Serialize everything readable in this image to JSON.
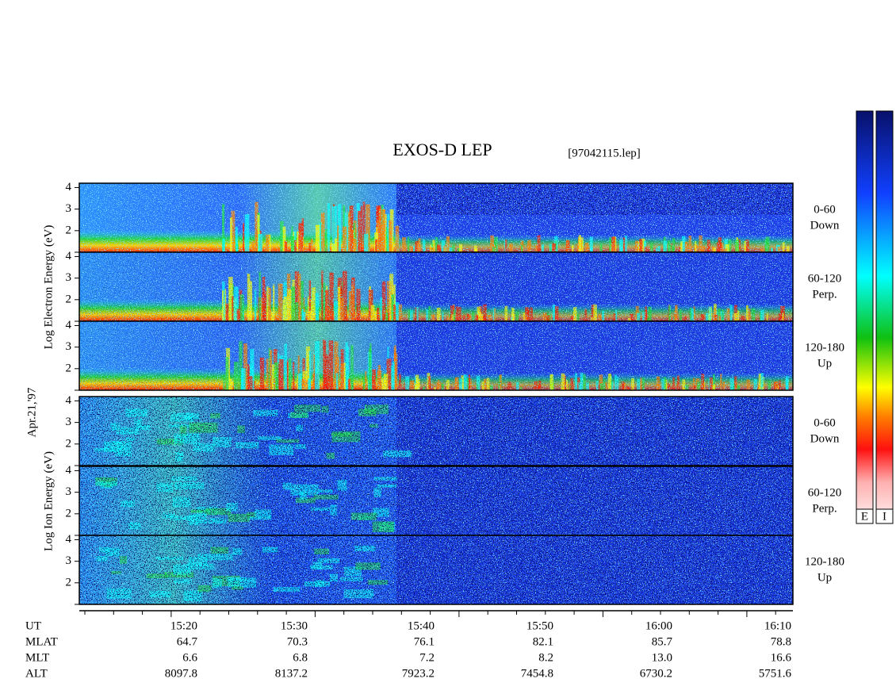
{
  "title": "EXOS-D LEP",
  "file": "[97042115.lep]",
  "date": "Apr.21,'97",
  "electron_axis_label": "Log  Electron  Energy (eV)",
  "ion_axis_label": "Log  Ion  Energy (eV)",
  "ylim": [
    1,
    4.2
  ],
  "yticks": [
    2,
    3,
    4
  ],
  "panels": [
    {
      "species": "electron",
      "label": [
        "0-60",
        "Down"
      ]
    },
    {
      "species": "electron",
      "label": [
        "60-120",
        "Perp."
      ]
    },
    {
      "species": "electron",
      "label": [
        "120-180",
        "Up"
      ]
    },
    {
      "species": "ion",
      "label": [
        "0-60",
        "Down"
      ]
    },
    {
      "species": "ion",
      "label": [
        "60-120",
        "Perp."
      ]
    },
    {
      "species": "ion",
      "label": [
        "120-180",
        "Up"
      ]
    }
  ],
  "colorbars": [
    "E",
    "I"
  ],
  "table": {
    "rows": [
      {
        "label": "UT",
        "values": [
          "15:20",
          "15:30",
          "15:40",
          "15:50",
          "16:00",
          "16:10"
        ]
      },
      {
        "label": "MLAT",
        "values": [
          "64.7",
          "70.3",
          "76.1",
          "82.1",
          "85.7",
          "78.8"
        ]
      },
      {
        "label": "MLT",
        "values": [
          "6.6",
          "6.8",
          "7.2",
          "8.2",
          "13.0",
          "16.6"
        ]
      },
      {
        "label": "ALT",
        "values": [
          "8097.8",
          "8137.2",
          "7923.2",
          "7454.8",
          "6730.2",
          "5751.6"
        ]
      }
    ]
  }
}
